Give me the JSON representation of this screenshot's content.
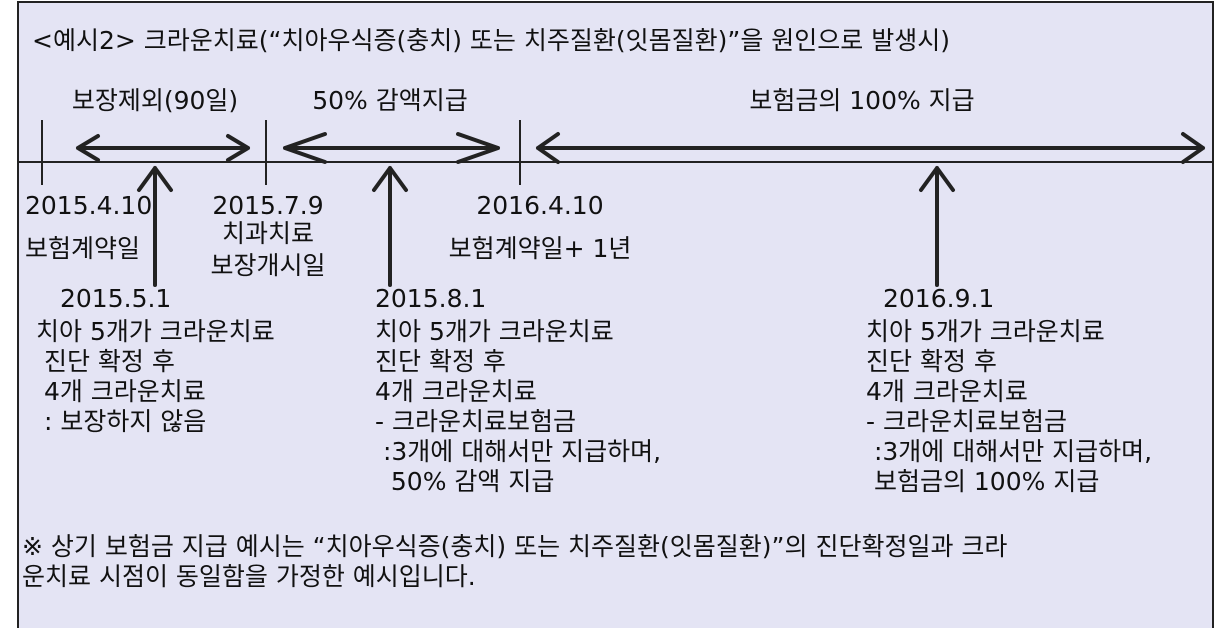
{
  "title": "<예시2> 크라운치료(“치아우식증(충치) 또는 치주질환(잇몸질환)”을 원인으로 발생시)",
  "periods": [
    "보장제외(90일)",
    "50% 감액지급",
    "보험금의 100% 지급"
  ],
  "milestones": [
    {
      "date": "2015.4.10",
      "label": [
        "보험계약일"
      ]
    },
    {
      "date": "2015.7.9",
      "label": [
        "치과치료",
        "보장개시일"
      ]
    },
    {
      "date": "2016.4.10",
      "label": [
        "보험계약일+ 1년"
      ]
    }
  ],
  "events": [
    {
      "date": "2015.5.1",
      "lines": [
        "치아 5개가 크라운치료",
        " 진단 확정 후",
        " 4개 크라운치료",
        " : 보장하지 않음"
      ]
    },
    {
      "date": "2015.8.1",
      "lines": [
        "치아 5개가 크라운치료",
        "진단 확정 후",
        "4개 크라운치료",
        "- 크라운치료보험금",
        " :3개에 대해서만 지급하며,",
        "  50% 감액 지급"
      ]
    },
    {
      "date": "2016.9.1",
      "lines": [
        "치아 5개가 크라운치료",
        "진단 확정 후",
        "4개 크라운치료",
        "- 크라운치료보험금",
        " :3개에 대해서만 지급하며,",
        " 보험금의 100% 지급"
      ]
    }
  ],
  "footnote": [
    "※ 상기 보험금 지급 예시는 “치아우식증(충치) 또는 치주질환(잇몸질환)”의 진단확정일과 크라",
    "운치료 시점이 동일함을 가정한 예시입니다."
  ]
}
